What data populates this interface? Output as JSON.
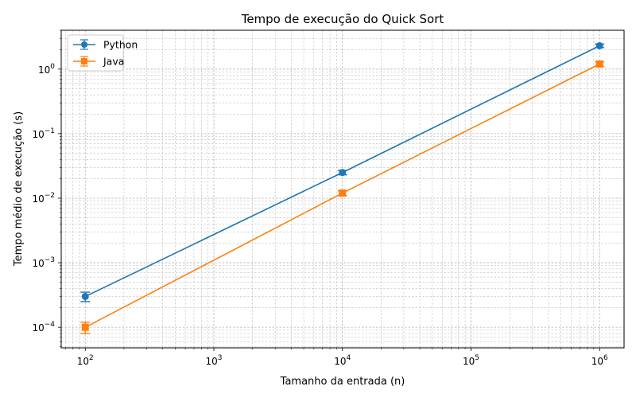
{
  "chart_data": {
    "type": "line",
    "title": "Tempo de execução do Quick Sort",
    "xlabel": "Tamanho da entrada (n)",
    "ylabel": "Tempo médio de execução (s)",
    "xscale": "log",
    "yscale": "log",
    "xlim": [
      65,
      1550000
    ],
    "ylim": [
      4.8e-05,
      4.0
    ],
    "x_ticks": [
      {
        "base": "10",
        "exp": "2",
        "value": 100
      },
      {
        "base": "10",
        "exp": "3",
        "value": 1000
      },
      {
        "base": "10",
        "exp": "4",
        "value": 10000
      },
      {
        "base": "10",
        "exp": "5",
        "value": 100000
      },
      {
        "base": "10",
        "exp": "6",
        "value": 1000000
      }
    ],
    "y_ticks": [
      {
        "base": "10",
        "exp": "−4",
        "value": 0.0001
      },
      {
        "base": "10",
        "exp": "−3",
        "value": 0.001
      },
      {
        "base": "10",
        "exp": "−2",
        "value": 0.01
      },
      {
        "base": "10",
        "exp": "−1",
        "value": 0.1
      },
      {
        "base": "10",
        "exp": "0",
        "value": 1
      }
    ],
    "grid": "both major and minor, dashed",
    "legend_position": "top-left",
    "series": [
      {
        "name": "Python",
        "color": "#1f77b4",
        "marker": "circle",
        "x": [
          100,
          10000,
          1000000
        ],
        "y": [
          0.0003,
          0.025,
          2.3
        ],
        "err_low": [
          5e-05,
          0.002,
          0.15
        ],
        "err_high": [
          5e-05,
          0.002,
          0.15
        ]
      },
      {
        "name": "Java",
        "color": "#ff7f0e",
        "marker": "square",
        "x": [
          100,
          10000,
          1000000
        ],
        "y": [
          0.0001,
          0.012,
          1.2
        ],
        "err_low": [
          2e-05,
          0.001,
          0.1
        ],
        "err_high": [
          2e-05,
          0.001,
          0.1
        ]
      }
    ]
  }
}
